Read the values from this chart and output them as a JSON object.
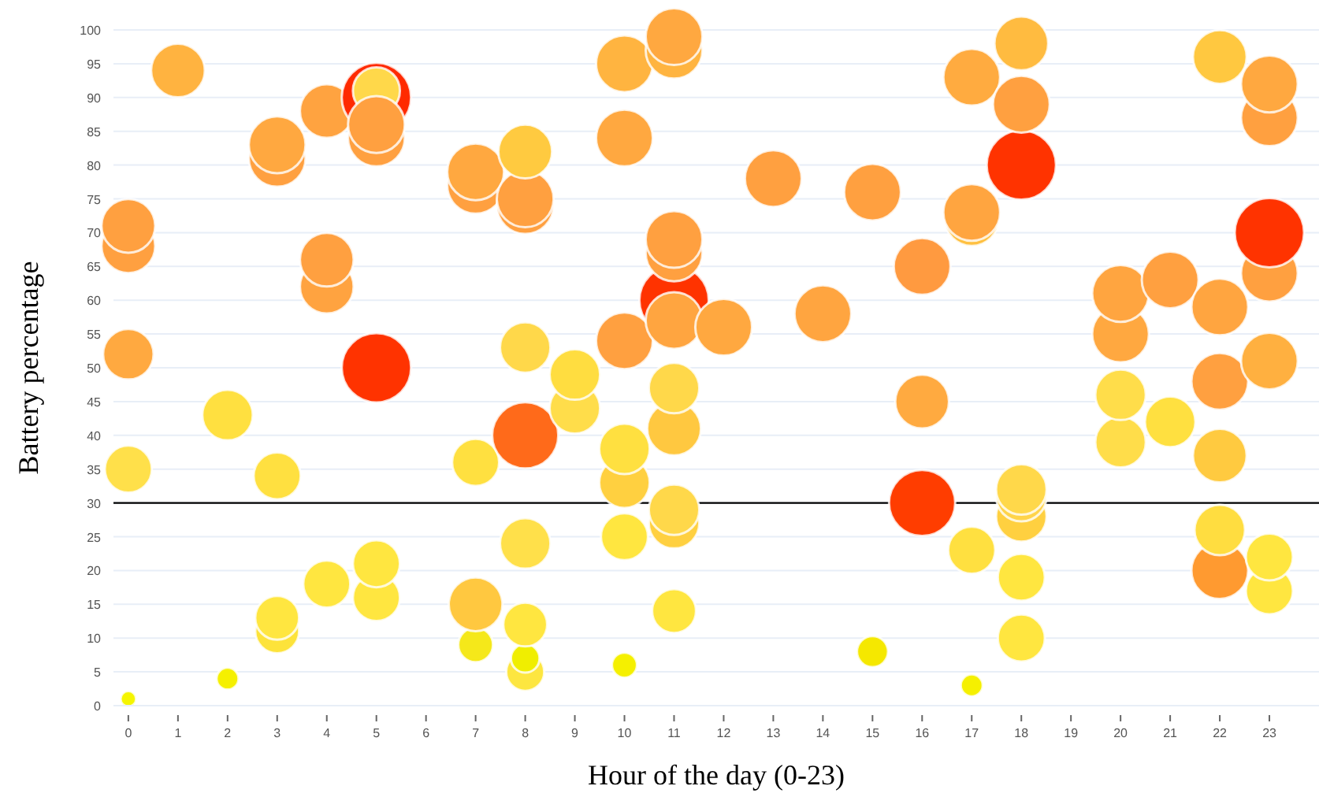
{
  "chart_data": {
    "type": "bubble",
    "xlabel": "Hour of the day (0-23)",
    "ylabel": "Battery percentage",
    "x": [
      0,
      0,
      0,
      0,
      0,
      1,
      2,
      2,
      3,
      3,
      3,
      3,
      3,
      4,
      4,
      4,
      4,
      5,
      5,
      5,
      5,
      5,
      5,
      5,
      7,
      7,
      7,
      7,
      7,
      8,
      8,
      8,
      8,
      8,
      8,
      8,
      8,
      8,
      9,
      9,
      10,
      10,
      10,
      10,
      10,
      10,
      10,
      11,
      11,
      11,
      11,
      11,
      11,
      11,
      11,
      11,
      11,
      11,
      12,
      13,
      14,
      15,
      15,
      16,
      16,
      16,
      17,
      17,
      17,
      17,
      17,
      18,
      18,
      18,
      18,
      18,
      18,
      18,
      18,
      20,
      20,
      20,
      20,
      21,
      21,
      22,
      22,
      22,
      22,
      22,
      22,
      23,
      23,
      23,
      23,
      23,
      23,
      23
    ],
    "values": [
      1,
      35,
      52,
      68,
      71,
      94,
      4,
      43,
      11,
      13,
      34,
      81,
      83,
      18,
      62,
      66,
      88,
      16,
      21,
      50,
      84,
      90,
      91,
      86,
      9,
      15,
      36,
      77,
      79,
      5,
      7,
      12,
      24,
      40,
      53,
      74,
      75,
      82,
      44,
      49,
      6,
      25,
      33,
      38,
      54,
      84,
      95,
      14,
      27,
      29,
      41,
      47,
      60,
      57,
      67,
      69,
      97,
      99,
      56,
      78,
      58,
      8,
      76,
      30,
      45,
      65,
      3,
      23,
      72,
      73,
      93,
      10,
      19,
      28,
      31,
      32,
      80,
      89,
      98,
      39,
      46,
      55,
      61,
      42,
      63,
      20,
      26,
      37,
      48,
      59,
      96,
      17,
      22,
      51,
      64,
      70,
      87,
      92
    ],
    "sizes": [
      0.05,
      0.46,
      0.53,
      0.6,
      0.6,
      0.6,
      0.1,
      0.53,
      0.4,
      0.4,
      0.46,
      0.67,
      0.67,
      0.46,
      0.6,
      0.6,
      0.6,
      0.46,
      0.46,
      1,
      0.67,
      1,
      0.46,
      0.67,
      0.25,
      0.6,
      0.46,
      0.67,
      0.67,
      0.3,
      0.17,
      0.4,
      0.53,
      0.91,
      0.53,
      0.67,
      0.67,
      0.6,
      0.53,
      0.53,
      0.13,
      0.46,
      0.53,
      0.53,
      0.67,
      0.67,
      0.67,
      0.4,
      0.53,
      0.53,
      0.6,
      0.53,
      1,
      0.67,
      0.67,
      0.67,
      0.67,
      0.67,
      0.67,
      0.67,
      0.67,
      0.2,
      0.67,
      0.91,
      0.6,
      0.67,
      0.1,
      0.46,
      0.6,
      0.67,
      0.67,
      0.46,
      0.46,
      0.53,
      0.53,
      0.53,
      1,
      0.67,
      0.6,
      0.53,
      0.53,
      0.67,
      0.67,
      0.53,
      0.67,
      0.67,
      0.53,
      0.6,
      0.67,
      0.67,
      0.6,
      0.46,
      0.46,
      0.67,
      0.67,
      1,
      0.67,
      0.67
    ],
    "colors": [
      "#f5f500",
      "#ffe04a",
      "#ffa940",
      "#ffa040",
      "#ffa040",
      "#ffb340",
      "#f5f000",
      "#ffe040",
      "#fde33a",
      "#ffe640",
      "#ffe040",
      "#ffa040",
      "#ffa840",
      "#ffe640",
      "#ffa340",
      "#ffa040",
      "#ffa340",
      "#ffe640",
      "#ffe640",
      "#ff3300",
      "#ffa040",
      "#ff2a00",
      "#ffd84a",
      "#ffa040",
      "#f5e81a",
      "#ffc840",
      "#ffe040",
      "#ffa040",
      "#ffa840",
      "#fde640",
      "#f0ee00",
      "#ffe640",
      "#ffe04a",
      "#ff6a1a",
      "#ffd84a",
      "#ffa040",
      "#ffa040",
      "#ffca40",
      "#ffdd4a",
      "#ffdd40",
      "#f5f000",
      "#ffe640",
      "#ffd040",
      "#ffe040",
      "#ffa040",
      "#ffa840",
      "#ffb440",
      "#ffe640",
      "#ffd040",
      "#ffd84a",
      "#ffc840",
      "#ffd84a",
      "#ff3300",
      "#ffa540",
      "#ffa040",
      "#ffa040",
      "#ffb440",
      "#ffa840",
      "#ffa840",
      "#ffa040",
      "#ffa540",
      "#f5e800",
      "#ffa040",
      "#ff3d00",
      "#ffaa40",
      "#ff9a40",
      "#f5f000",
      "#ffe040",
      "#ffc040",
      "#ffa540",
      "#ffab40",
      "#ffe640",
      "#ffe640",
      "#ffd040",
      "#ffd44a",
      "#ffd84a",
      "#ff3300",
      "#ffa040",
      "#ffbb40",
      "#ffdd4a",
      "#ffdd4a",
      "#ffa840",
      "#ffa540",
      "#ffe040",
      "#ffa040",
      "#ff9a30",
      "#ffdd40",
      "#ffca40",
      "#ffa040",
      "#ffa540",
      "#ffc840",
      "#ffe640",
      "#ffe640",
      "#ffb040",
      "#ffa040",
      "#ff3300",
      "#ffa040",
      "#ffa840"
    ],
    "xlim": [
      -0.3,
      24
    ],
    "xticks": [
      0,
      1,
      2,
      3,
      4,
      5,
      6,
      7,
      8,
      9,
      10,
      11,
      12,
      13,
      14,
      15,
      16,
      17,
      18,
      19,
      20,
      21,
      22,
      23
    ],
    "ylim": [
      0,
      100
    ],
    "yticks": [
      0,
      5,
      10,
      15,
      20,
      25,
      30,
      35,
      40,
      45,
      50,
      55,
      60,
      65,
      70,
      75,
      80,
      85,
      90,
      95,
      100
    ],
    "grid": "y",
    "ref_lines": [
      {
        "axis": "y",
        "value": 30,
        "color": "#000000"
      }
    ]
  }
}
